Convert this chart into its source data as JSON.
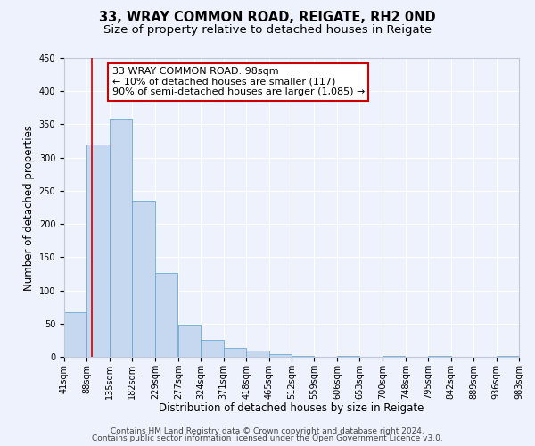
{
  "title": "33, WRAY COMMON ROAD, REIGATE, RH2 0ND",
  "subtitle": "Size of property relative to detached houses in Reigate",
  "xlabel": "Distribution of detached houses by size in Reigate",
  "ylabel": "Number of detached properties",
  "bar_values": [
    67,
    320,
    358,
    235,
    126,
    49,
    25,
    13,
    10,
    4,
    2,
    0,
    2,
    0,
    1,
    0,
    1,
    0,
    0,
    2
  ],
  "bin_edges": [
    41,
    88,
    135,
    182,
    229,
    277,
    324,
    371,
    418,
    465,
    512,
    559,
    606,
    653,
    700,
    748,
    795,
    842,
    889,
    936,
    983
  ],
  "tick_labels": [
    "41sqm",
    "88sqm",
    "135sqm",
    "182sqm",
    "229sqm",
    "277sqm",
    "324sqm",
    "371sqm",
    "418sqm",
    "465sqm",
    "512sqm",
    "559sqm",
    "606sqm",
    "653sqm",
    "700sqm",
    "748sqm",
    "795sqm",
    "842sqm",
    "889sqm",
    "936sqm",
    "983sqm"
  ],
  "bar_color": "#c5d8f0",
  "bar_edge_color": "#6aaad4",
  "vline_x": 98,
  "vline_color": "#cc0000",
  "ylim": [
    0,
    450
  ],
  "yticks": [
    0,
    50,
    100,
    150,
    200,
    250,
    300,
    350,
    400,
    450
  ],
  "annotation_line1": "33 WRAY COMMON ROAD: 98sqm",
  "annotation_line2": "← 10% of detached houses are smaller (117)",
  "annotation_line3": "90% of semi-detached houses are larger (1,085) →",
  "annotation_box_color": "#ffffff",
  "annotation_box_edge_color": "#cc0000",
  "footer_line1": "Contains HM Land Registry data © Crown copyright and database right 2024.",
  "footer_line2": "Contains public sector information licensed under the Open Government Licence v3.0.",
  "bg_color": "#edf2fc",
  "grid_color": "#ffffff",
  "title_fontsize": 10.5,
  "subtitle_fontsize": 9.5,
  "axis_label_fontsize": 8.5,
  "tick_fontsize": 7,
  "annotation_fontsize": 8,
  "footer_fontsize": 6.5
}
